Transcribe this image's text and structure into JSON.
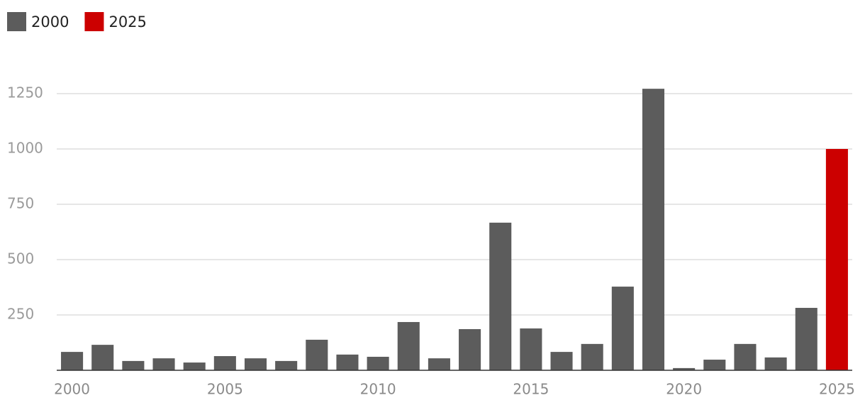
{
  "chart_data": {
    "type": "bar",
    "categories": [
      "2000",
      null,
      null,
      null,
      null,
      "2005",
      null,
      null,
      null,
      null,
      "2010",
      null,
      null,
      null,
      null,
      "2015",
      null,
      null,
      null,
      null,
      "2020",
      null,
      null,
      null,
      null,
      "2025"
    ],
    "series": [
      {
        "name": "2000",
        "color": "#5c5c5c",
        "values": [
          83,
          115,
          42,
          54,
          35,
          64,
          54,
          42,
          138,
          71,
          61,
          218,
          54,
          186,
          667,
          189,
          83,
          119,
          378,
          1272,
          10,
          48,
          119,
          58,
          282,
          null
        ]
      },
      {
        "name": "2025",
        "color": "#cc0000",
        "values": [
          null,
          null,
          null,
          null,
          null,
          null,
          null,
          null,
          null,
          null,
          null,
          null,
          null,
          null,
          null,
          null,
          null,
          null,
          null,
          null,
          null,
          null,
          null,
          null,
          null,
          1000
        ]
      }
    ],
    "ylim": [
      0,
      1300
    ],
    "yticks": [
      250,
      500,
      750,
      1000,
      1250
    ],
    "grid": true
  }
}
